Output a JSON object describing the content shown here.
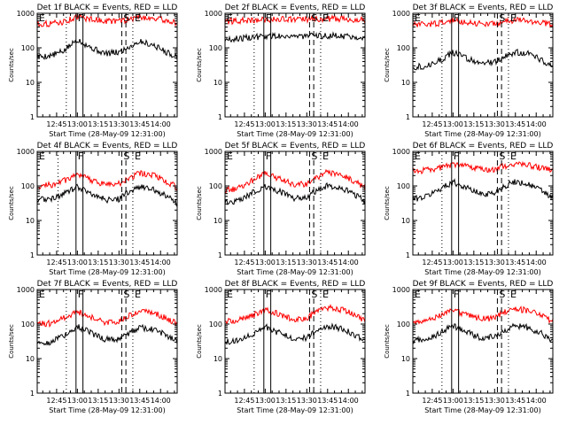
{
  "chart_data": {
    "type": "line",
    "layout": "3x3 grid",
    "yscale": "log",
    "ylim": [
      1,
      1000
    ],
    "ylabel": "Counts/sec",
    "yticks": [
      "1",
      "10",
      "100",
      "1000"
    ],
    "xlim": [
      "12:31",
      "14:12"
    ],
    "xlabel": "Start Time (28-May-09 12:31:00)",
    "xticks": [
      "12:45",
      "13:00",
      "13:15",
      "13:30",
      "13:45",
      "14:00"
    ],
    "grid": false,
    "colors": {
      "events": "#000000",
      "lld": "#ff0000"
    },
    "marker_style": {
      "F": "solid",
      "S": "dashed",
      "E": "dashed",
      "edge": "dotted"
    },
    "panels": [
      {
        "title": "Det 1f BLACK = Events, RED = LLD",
        "markers": [
          {
            "label": "E",
            "time": "12:31",
            "style": "edge"
          },
          {
            "label": "",
            "time": "12:52",
            "style": "edge"
          },
          {
            "label": "F",
            "time": "12:59",
            "style": "F"
          },
          {
            "label": "",
            "time": "13:04",
            "style": "F"
          },
          {
            "label": "S",
            "time": "13:32",
            "style": "S"
          },
          {
            "label": "",
            "time": "13:35",
            "style": "E"
          },
          {
            "label": "E",
            "time": "13:40",
            "style": "edge"
          }
        ],
        "series": [
          {
            "color": "events",
            "x": [
              "12:31",
              "12:40",
              "12:50",
              "13:00",
              "13:10",
              "13:20",
              "13:30",
              "13:35",
              "13:45",
              "13:55",
              "14:05",
              "14:12"
            ],
            "values": [
              56,
              58,
              80,
              175,
              100,
              68,
              74,
              95,
              155,
              120,
              72,
              55
            ]
          },
          {
            "color": "lld",
            "x": [
              "12:31",
              "12:40",
              "12:50",
              "13:00",
              "13:10",
              "13:20",
              "13:30",
              "13:35",
              "13:45",
              "13:55",
              "14:05",
              "14:12"
            ],
            "values": [
              490,
              500,
              560,
              790,
              680,
              600,
              590,
              640,
              780,
              720,
              600,
              530
            ]
          }
        ]
      },
      {
        "title": "Det 2f BLACK = Events, RED = LLD",
        "markers": [
          {
            "label": "E",
            "time": "12:31",
            "style": "edge"
          },
          {
            "label": "",
            "time": "12:52",
            "style": "edge"
          },
          {
            "label": "F",
            "time": "12:59",
            "style": "F"
          },
          {
            "label": "",
            "time": "13:04",
            "style": "F"
          },
          {
            "label": "S",
            "time": "13:32",
            "style": "S"
          },
          {
            "label": "",
            "time": "13:35",
            "style": "E"
          },
          {
            "label": "E",
            "time": "13:40",
            "style": "edge"
          }
        ],
        "series": [
          {
            "color": "events",
            "x": [
              "12:31",
              "12:40",
              "12:50",
              "13:00",
              "13:10",
              "13:20",
              "13:30",
              "13:40",
              "13:50",
              "14:00",
              "14:12"
            ],
            "values": [
              170,
              185,
              200,
              215,
              225,
              220,
              215,
              220,
              225,
              215,
              205
            ]
          },
          {
            "color": "lld",
            "x": [
              "12:31",
              "12:40",
              "12:50",
              "13:00",
              "13:10",
              "13:20",
              "13:30",
              "13:40",
              "13:50",
              "14:00",
              "14:12"
            ],
            "values": [
              580,
              600,
              620,
              650,
              680,
              660,
              650,
              680,
              700,
              680,
              640
            ]
          }
        ]
      },
      {
        "title": "Det 3f BLACK = Events, RED = LLD",
        "markers": [
          {
            "label": "E",
            "time": "12:31",
            "style": "edge"
          },
          {
            "label": "",
            "time": "12:52",
            "style": "edge"
          },
          {
            "label": "F",
            "time": "12:59",
            "style": "F"
          },
          {
            "label": "",
            "time": "13:04",
            "style": "F"
          },
          {
            "label": "S",
            "time": "13:32",
            "style": "S"
          },
          {
            "label": "",
            "time": "13:35",
            "style": "E"
          },
          {
            "label": "E",
            "time": "13:40",
            "style": "edge"
          }
        ],
        "series": [
          {
            "color": "events",
            "x": [
              "12:31",
              "12:40",
              "12:50",
              "13:00",
              "13:10",
              "13:20",
              "13:30",
              "13:35",
              "13:45",
              "13:55",
              "14:05",
              "14:12"
            ],
            "values": [
              28,
              30,
              42,
              72,
              50,
              36,
              38,
              50,
              75,
              66,
              42,
              30
            ]
          },
          {
            "color": "lld",
            "x": [
              "12:31",
              "12:40",
              "12:50",
              "13:00",
              "13:10",
              "13:20",
              "13:30",
              "13:35",
              "13:45",
              "13:55",
              "14:05",
              "14:12"
            ],
            "values": [
              460,
              470,
              520,
              610,
              560,
              500,
              490,
              540,
              640,
              600,
              520,
              470
            ]
          }
        ]
      },
      {
        "title": "Det 4f BLACK = Events, RED = LLD",
        "markers": [
          {
            "label": "E",
            "time": "12:31",
            "style": "edge"
          },
          {
            "label": "",
            "time": "12:46",
            "style": "edge"
          },
          {
            "label": "F",
            "time": "12:59",
            "style": "F"
          },
          {
            "label": "",
            "time": "13:04",
            "style": "F"
          },
          {
            "label": "S",
            "time": "13:32",
            "style": "S"
          },
          {
            "label": "",
            "time": "13:35",
            "style": "E"
          },
          {
            "label": "E",
            "time": "13:40",
            "style": "edge"
          }
        ],
        "series": [
          {
            "color": "events",
            "x": [
              "12:31",
              "12:40",
              "12:50",
              "13:00",
              "13:10",
              "13:20",
              "13:30",
              "13:35",
              "13:45",
              "13:55",
              "14:05",
              "14:12"
            ],
            "values": [
              40,
              42,
              58,
              95,
              62,
              40,
              42,
              60,
              95,
              80,
              48,
              30
            ]
          },
          {
            "color": "lld",
            "x": [
              "12:31",
              "12:40",
              "12:50",
              "13:00",
              "13:10",
              "13:20",
              "13:30",
              "13:35",
              "13:45",
              "13:55",
              "14:05",
              "14:12"
            ],
            "values": [
              95,
              105,
              140,
              200,
              150,
              110,
              115,
              150,
              240,
              200,
              130,
              90
            ]
          }
        ]
      },
      {
        "title": "Det 5f BLACK = Events, RED = LLD",
        "markers": [
          {
            "label": "E",
            "time": "12:31",
            "style": "edge"
          },
          {
            "label": "",
            "time": "12:52",
            "style": "edge"
          },
          {
            "label": "F",
            "time": "12:59",
            "style": "F"
          },
          {
            "label": "",
            "time": "13:04",
            "style": "F"
          },
          {
            "label": "S",
            "time": "13:32",
            "style": "S"
          },
          {
            "label": "",
            "time": "13:35",
            "style": "E"
          },
          {
            "label": "E",
            "time": "13:40",
            "style": "edge"
          }
        ],
        "series": [
          {
            "color": "events",
            "x": [
              "12:31",
              "12:40",
              "12:50",
              "13:00",
              "13:10",
              "13:20",
              "13:30",
              "13:35",
              "13:45",
              "13:55",
              "14:05",
              "14:12"
            ],
            "values": [
              32,
              36,
              60,
              100,
              70,
              45,
              48,
              68,
              100,
              85,
              55,
              36
            ]
          },
          {
            "color": "lld",
            "x": [
              "12:31",
              "12:40",
              "12:50",
              "13:00",
              "13:10",
              "13:20",
              "13:30",
              "13:35",
              "13:45",
              "13:55",
              "14:05",
              "14:12"
            ],
            "values": [
              75,
              85,
              140,
              240,
              160,
              110,
              115,
              160,
              250,
              210,
              130,
              85
            ]
          }
        ]
      },
      {
        "title": "Det 6f BLACK = Events, RED = LLD",
        "markers": [
          {
            "label": "E",
            "time": "12:31",
            "style": "edge"
          },
          {
            "label": "",
            "time": "12:52",
            "style": "edge"
          },
          {
            "label": "F",
            "time": "12:59",
            "style": "F"
          },
          {
            "label": "",
            "time": "13:04",
            "style": "F"
          },
          {
            "label": "S",
            "time": "13:32",
            "style": "S"
          },
          {
            "label": "",
            "time": "13:35",
            "style": "E"
          },
          {
            "label": "E",
            "time": "13:40",
            "style": "edge"
          }
        ],
        "series": [
          {
            "color": "events",
            "x": [
              "12:31",
              "12:40",
              "12:50",
              "13:00",
              "13:10",
              "13:20",
              "13:30",
              "13:35",
              "13:45",
              "13:55",
              "14:05",
              "14:12"
            ],
            "values": [
              42,
              48,
              80,
              130,
              88,
              58,
              62,
              90,
              135,
              110,
              70,
              42
            ]
          },
          {
            "color": "lld",
            "x": [
              "12:31",
              "12:40",
              "12:50",
              "13:00",
              "13:10",
              "13:20",
              "13:30",
              "13:35",
              "13:45",
              "13:55",
              "14:05",
              "14:12"
            ],
            "values": [
              270,
              280,
              330,
              420,
              360,
              300,
              300,
              360,
              430,
              400,
              320,
              270
            ]
          }
        ]
      },
      {
        "title": "Det 7f BLACK = Events, RED = LLD",
        "markers": [
          {
            "label": "E",
            "time": "12:31",
            "style": "edge"
          },
          {
            "label": "",
            "time": "12:52",
            "style": "edge"
          },
          {
            "label": "F",
            "time": "12:59",
            "style": "F"
          },
          {
            "label": "",
            "time": "13:04",
            "style": "F"
          },
          {
            "label": "S",
            "time": "13:32",
            "style": "S"
          },
          {
            "label": "",
            "time": "13:35",
            "style": "E"
          },
          {
            "label": "E",
            "time": "13:40",
            "style": "edge"
          }
        ],
        "series": [
          {
            "color": "events",
            "x": [
              "12:31",
              "12:40",
              "12:50",
              "13:00",
              "13:10",
              "13:20",
              "13:30",
              "13:35",
              "13:45",
              "13:55",
              "14:05",
              "14:12"
            ],
            "values": [
              28,
              30,
              45,
              85,
              55,
              36,
              38,
              50,
              80,
              70,
              45,
              30
            ]
          },
          {
            "color": "lld",
            "x": [
              "12:31",
              "12:40",
              "12:50",
              "13:00",
              "13:10",
              "13:20",
              "13:30",
              "13:35",
              "13:45",
              "13:55",
              "14:05",
              "14:12"
            ],
            "values": [
              100,
              105,
              150,
              230,
              160,
              110,
              115,
              165,
              250,
              210,
              140,
              100
            ]
          }
        ]
      },
      {
        "title": "Det 8f BLACK = Events, RED = LLD",
        "markers": [
          {
            "label": "E",
            "time": "12:31",
            "style": "edge"
          },
          {
            "label": "",
            "time": "12:52",
            "style": "edge"
          },
          {
            "label": "F",
            "time": "12:59",
            "style": "F"
          },
          {
            "label": "",
            "time": "13:04",
            "style": "F"
          },
          {
            "label": "S",
            "time": "13:32",
            "style": "S"
          },
          {
            "label": "",
            "time": "13:35",
            "style": "E"
          },
          {
            "label": "E",
            "time": "13:40",
            "style": "edge"
          }
        ],
        "series": [
          {
            "color": "events",
            "x": [
              "12:31",
              "12:40",
              "12:50",
              "13:00",
              "13:10",
              "13:20",
              "13:30",
              "13:35",
              "13:45",
              "13:55",
              "14:05",
              "14:12"
            ],
            "values": [
              30,
              33,
              48,
              85,
              55,
              38,
              40,
              55,
              85,
              75,
              48,
              32
            ]
          },
          {
            "color": "lld",
            "x": [
              "12:31",
              "12:40",
              "12:50",
              "13:00",
              "13:10",
              "13:20",
              "13:30",
              "13:35",
              "13:45",
              "13:55",
              "14:05",
              "14:12"
            ],
            "values": [
              120,
              130,
              170,
              260,
              190,
              140,
              150,
              200,
              300,
              260,
              180,
              130
            ]
          }
        ]
      },
      {
        "title": "Det 9f BLACK = Events, RED = LLD",
        "markers": [
          {
            "label": "E",
            "time": "12:31",
            "style": "edge"
          },
          {
            "label": "",
            "time": "12:52",
            "style": "edge"
          },
          {
            "label": "F",
            "time": "12:59",
            "style": "F"
          },
          {
            "label": "",
            "time": "13:04",
            "style": "F"
          },
          {
            "label": "S",
            "time": "13:32",
            "style": "S"
          },
          {
            "label": "",
            "time": "13:35",
            "style": "E"
          },
          {
            "label": "E",
            "time": "13:40",
            "style": "edge"
          }
        ],
        "series": [
          {
            "color": "events",
            "x": [
              "12:31",
              "12:40",
              "12:50",
              "13:00",
              "13:10",
              "13:20",
              "13:30",
              "13:35",
              "13:45",
              "13:55",
              "14:05",
              "14:12"
            ],
            "values": [
              33,
              36,
              52,
              90,
              58,
              40,
              42,
              58,
              90,
              78,
              50,
              34
            ]
          },
          {
            "color": "lld",
            "x": [
              "12:31",
              "12:40",
              "12:50",
              "13:00",
              "13:10",
              "13:20",
              "13:30",
              "13:35",
              "13:45",
              "13:55",
              "14:05",
              "14:12"
            ],
            "values": [
              120,
              130,
              170,
              250,
              185,
              140,
              150,
              200,
              280,
              240,
              170,
              120
            ]
          }
        ]
      }
    ]
  }
}
